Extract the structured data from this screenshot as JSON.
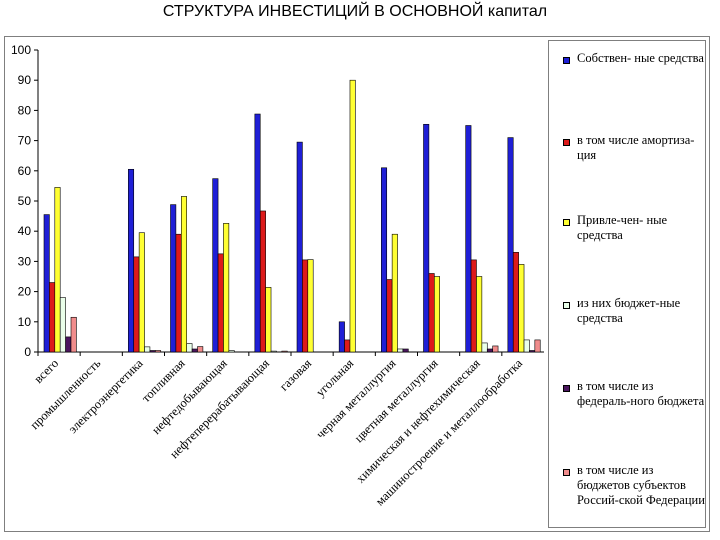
{
  "chart_data": {
    "type": "bar",
    "title": "СТРУКТУРА ИНВЕСТИЦИЙ В ОСНОВНОЙ капитал",
    "xlabel": "",
    "ylabel": "",
    "ylim": [
      0,
      100
    ],
    "yticks": [
      "0",
      "10",
      "20",
      "30",
      "40",
      "50",
      "60",
      "70",
      "80",
      "90",
      "100"
    ],
    "grid": false,
    "legend_position": "right",
    "categories": [
      "всего",
      "промышленность",
      "электроэнергетика",
      "топливная",
      "нефтедобывающая",
      "нефтеперерабатывающая",
      "газовая",
      "угольная",
      "черная металлургия",
      "цветная металлургия",
      "химическая и нефтехимическая",
      "машиностроение и металлообработка"
    ],
    "series": [
      {
        "name": "Собствен- ные средства",
        "color": "#1f1fd6",
        "values": [
          45.5,
          0,
          60.5,
          48.8,
          57.4,
          78.8,
          69.5,
          10,
          61,
          75.4,
          75,
          71
        ]
      },
      {
        "name": "в том числе амортиза-ция",
        "color": "#dd1a1a",
        "values": [
          23,
          0,
          31.5,
          39,
          32.5,
          46.7,
          30.5,
          4,
          24,
          26,
          30.5,
          33
        ]
      },
      {
        "name": "Привле-чен- ные средства",
        "color": "#ffff33",
        "values": [
          54.5,
          0,
          39.5,
          51.5,
          42.6,
          21.4,
          30.6,
          90,
          39,
          25,
          25,
          29
        ]
      },
      {
        "name": "из них бюджет-ные средства",
        "color": "#eaffea",
        "values": [
          18,
          0,
          1.7,
          2.8,
          0.5,
          0.3,
          0,
          0,
          1,
          0,
          3,
          4
        ]
      },
      {
        "name": "в том числе из федераль-ного бюджета",
        "color": "#4a165e",
        "values": [
          5,
          0,
          0.5,
          1,
          0,
          0,
          0,
          0,
          1,
          0,
          1,
          0.5
        ]
      },
      {
        "name": "в том числе из бюджетов субъектов Россий-ской Федерации",
        "color": "#f08c8c",
        "values": [
          11.5,
          0,
          0.5,
          1.8,
          0,
          0.3,
          0,
          0,
          0,
          0,
          2,
          4
        ]
      }
    ]
  }
}
